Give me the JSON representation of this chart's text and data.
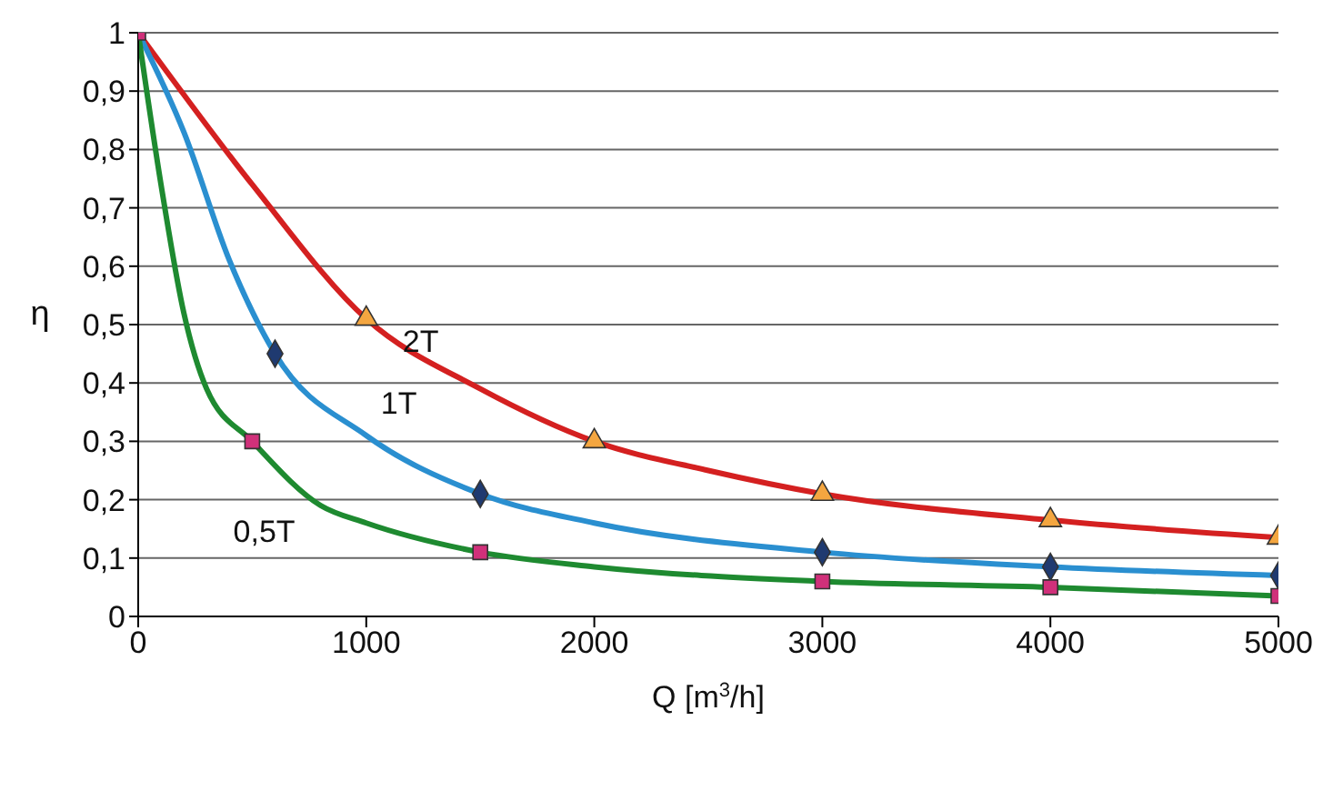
{
  "chart_data": {
    "type": "line",
    "xlabel": "Q [m$^{3}$/h]",
    "ylabel": "η",
    "xlim": [
      0,
      5000
    ],
    "xticks": [
      0,
      1000,
      2000,
      3000,
      4000,
      5000
    ],
    "ylim": [
      0,
      1
    ],
    "yticks": [
      0,
      {
        "value": 0.1,
        "label": "0,1"
      },
      {
        "value": 0.2,
        "label": "0,2"
      },
      {
        "value": 0.3,
        "label": "0,3"
      },
      {
        "value": 0.4,
        "label": "0,4"
      },
      {
        "value": 0.5,
        "label": "0,5"
      },
      {
        "value": 0.6,
        "label": "0,6"
      },
      {
        "value": 0.7,
        "label": "0,7"
      },
      {
        "value": 0.8,
        "label": "0,8"
      },
      {
        "value": 0.9,
        "label": "0,9"
      },
      1
    ],
    "grid": "y",
    "legend": false,
    "series": [
      {
        "name": "2T",
        "color": "#d42020",
        "marker": "none",
        "x": [
          0,
          500,
          1000,
          1500,
          2000,
          2500,
          3000,
          4000,
          5000
        ],
        "values": [
          1,
          0.74,
          0.51,
          0.39,
          0.3,
          0.25,
          0.21,
          0.165,
          0.135
        ]
      },
      {
        "name": "1T",
        "color": "#2a8fd0",
        "marker": "none",
        "x": [
          0,
          200,
          400,
          600,
          1000,
          1500,
          2000,
          3000,
          4000,
          5000
        ],
        "values": [
          1,
          0.83,
          0.61,
          0.45,
          0.31,
          0.21,
          0.16,
          0.11,
          0.085,
          0.07
        ]
      },
      {
        "name": "0,5T",
        "color": "#1e8a30",
        "marker": "none",
        "x": [
          0,
          100,
          200,
          300,
          500,
          800,
          1000,
          1500,
          2000,
          3000,
          4000,
          5000
        ],
        "values": [
          1,
          0.74,
          0.52,
          0.39,
          0.3,
          0.19,
          0.16,
          0.11,
          0.085,
          0.06,
          0.05,
          0.035
        ]
      },
      {
        "type": "scatter",
        "color": "#f4a640",
        "marker": "triangle",
        "x": [
          1000,
          2000,
          3000,
          4000,
          5000
        ],
        "values": [
          0.51,
          0.3,
          0.21,
          0.165,
          0.135
        ]
      },
      {
        "type": "scatter",
        "color": "#1f3a70",
        "marker": "diamond",
        "x": [
          600,
          1500,
          3000,
          4000,
          5000
        ],
        "values": [
          0.45,
          0.21,
          0.11,
          0.085,
          0.07
        ]
      },
      {
        "type": "scatter",
        "color": "#d0307a",
        "marker": "square",
        "x": [
          0,
          500,
          1500,
          3000,
          4000,
          5000
        ],
        "values": [
          1,
          0.3,
          0.11,
          0.06,
          0.05,
          0.035
        ]
      }
    ]
  }
}
